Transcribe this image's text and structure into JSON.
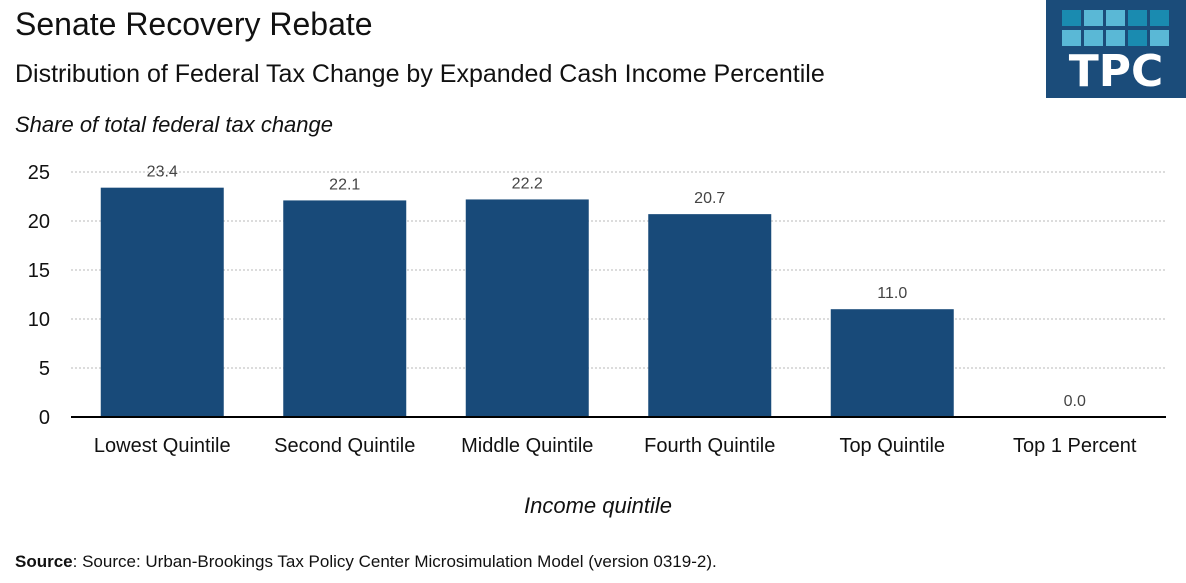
{
  "header": {
    "title": "Senate Recovery Rebate",
    "subtitle": "Distribution of Federal Tax Change by Expanded Cash Income Percentile",
    "logo_text": "TPC"
  },
  "colors": {
    "bar": "#184a79",
    "logo_bg": "#1b4c7a",
    "logo_tile_dark": "#1a8bb0",
    "logo_tile_light": "#5ab8d6",
    "grid": "#c8c8c8"
  },
  "chart_data": {
    "type": "bar",
    "title": "Senate Recovery Rebate",
    "subtitle": "Distribution of Federal Tax Change by Expanded Cash Income Percentile",
    "xlabel": "Income quintile",
    "ylabel": "Share of total federal tax change",
    "categories": [
      "Lowest Quintile",
      "Second Quintile",
      "Middle Quintile",
      "Fourth Quintile",
      "Top Quintile",
      "Top 1 Percent"
    ],
    "values": [
      23.4,
      22.1,
      22.2,
      20.7,
      11.0,
      0.0
    ],
    "value_labels": [
      "23.4",
      "22.1",
      "22.2",
      "20.7",
      "11.0",
      "0.0"
    ],
    "ylim": [
      0,
      25
    ],
    "yticks": [
      0,
      5,
      10,
      15,
      20,
      25
    ],
    "ytick_labels": [
      "0",
      "5",
      "10",
      "15",
      "20",
      "25"
    ],
    "grid": true,
    "legend": "none"
  },
  "footer": {
    "source_label": "Source",
    "source_text": ": Source: Urban-Brookings Tax Policy Center Microsimulation Model (version 0319-2)."
  }
}
